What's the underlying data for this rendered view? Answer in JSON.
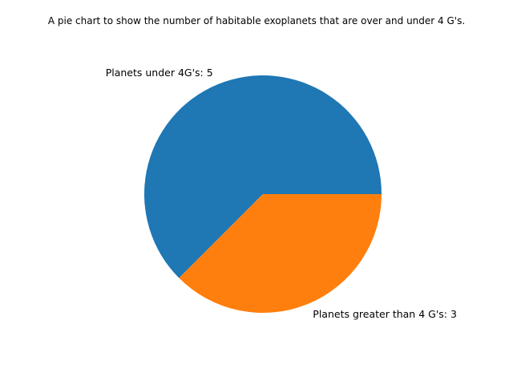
{
  "chart_data": {
    "type": "pie",
    "title": "A pie chart to show the number of habitable exoplanets that are over and under 4 G's.",
    "categories": [
      "Planets under 4G's",
      "Planets greater than 4 G's"
    ],
    "values": [
      5,
      3
    ],
    "labels": [
      "Planets under 4G's: 5",
      "Planets greater than 4 G's: 3"
    ],
    "colors": [
      "#1f77b4",
      "#ff7f0e"
    ],
    "start_angle_deg": 0,
    "direction": "counterclockwise",
    "legend": "none"
  }
}
